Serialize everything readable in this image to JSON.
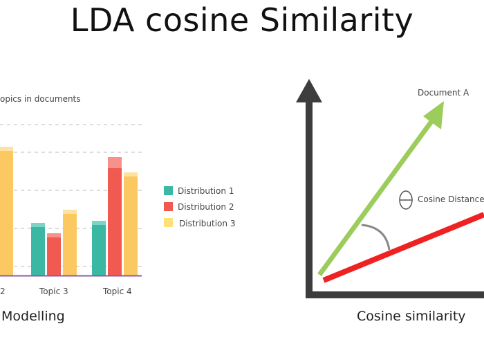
{
  "title": "LDA cosine Similarity",
  "left_panel": {
    "chart_title_partial": "opics in documents",
    "caption_partial": "Modelling",
    "categories": [
      "2",
      "Topic 3",
      "Topic 4"
    ],
    "legend": [
      "Distribution 1",
      "Distribution 2",
      "Distribution 3"
    ],
    "colors": {
      "d1": "#3bb8a3",
      "d2": "#f05a50",
      "d3": "#fbc862",
      "axis": "#8e5aa8",
      "grid": "#bbbbbb"
    }
  },
  "right_panel": {
    "vector_label": "Document A",
    "angle_symbol": "θ",
    "angle_label": "Cosine Distance",
    "caption": "Cosine similarity",
    "colors": {
      "vecA": "#9ccc5c",
      "vecB": "#ee2222",
      "axes": "#3d3d3d",
      "arc": "#888888"
    }
  }
}
